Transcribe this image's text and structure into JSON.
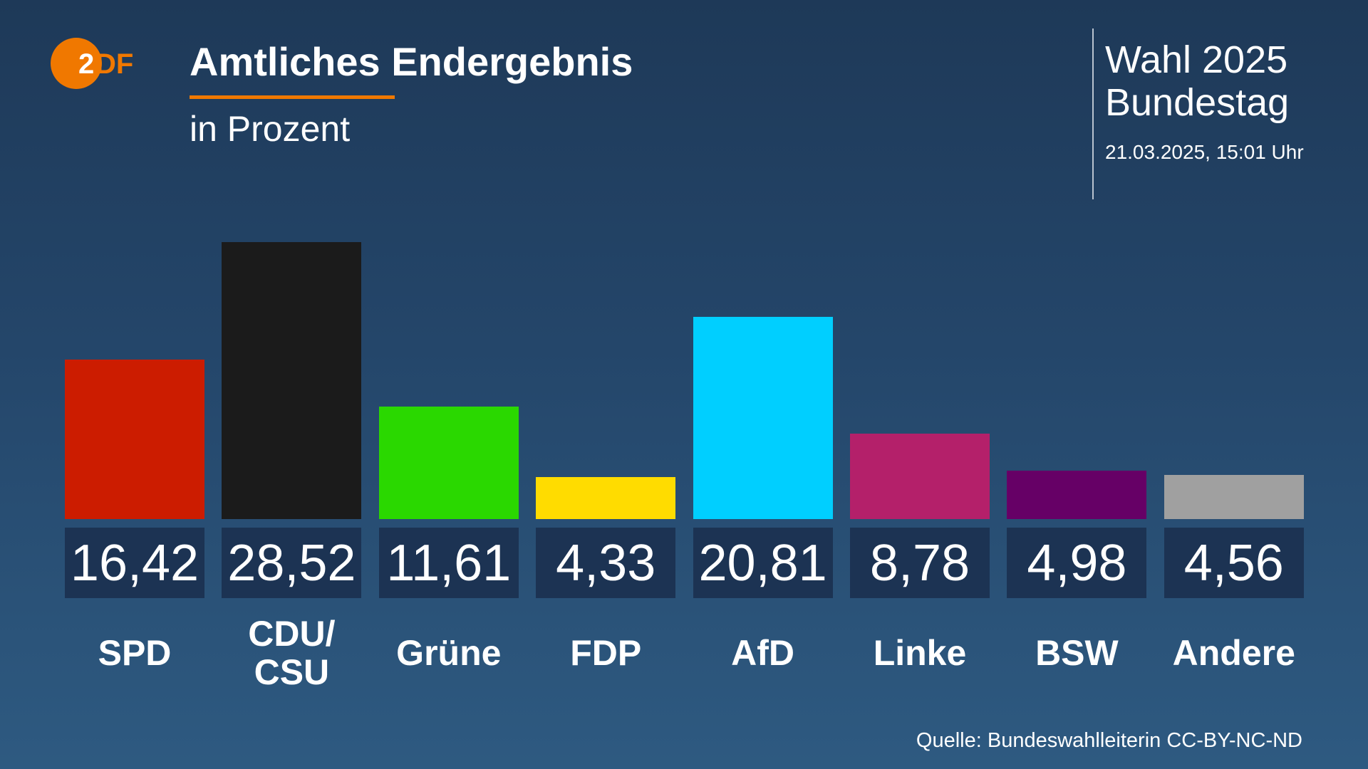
{
  "logo": {
    "text": "ZDF",
    "color": "#f07800"
  },
  "header": {
    "title": "Amtliches Endergebnis",
    "subtitle": "in Prozent",
    "accent_color": "#f07800",
    "election_line1": "Wahl 2025",
    "election_line2": "Bundestag",
    "timestamp": "21.03.2025, 15:01 Uhr"
  },
  "chart_data": {
    "type": "bar",
    "title": "Amtliches Endergebnis",
    "subtitle": "in Prozent",
    "categories": [
      "SPD",
      "CDU/\nCSU",
      "Grüne",
      "FDP",
      "AfD",
      "Linke",
      "BSW",
      "Andere"
    ],
    "values": [
      16.42,
      28.52,
      11.61,
      4.33,
      20.81,
      8.78,
      4.98,
      4.56
    ],
    "value_labels": [
      "16,42",
      "28,52",
      "11,61",
      "4,33",
      "20,81",
      "8,78",
      "4,98",
      "4,56"
    ],
    "colors": [
      "#cc1c00",
      "#1b1b1b",
      "#2ad800",
      "#ffdc00",
      "#00cfff",
      "#b4206a",
      "#660066",
      "#a0a0a0"
    ],
    "ylim": [
      0,
      28.52
    ],
    "grid": false
  },
  "footer": {
    "source": "Quelle: Bundeswahlleiterin CC-BY-NC-ND"
  }
}
